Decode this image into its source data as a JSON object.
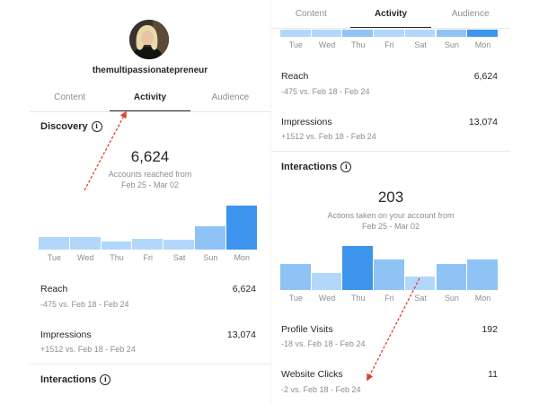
{
  "left": {
    "profile": {
      "username": "themultipassionatepreneur"
    },
    "tabs": [
      "Content",
      "Activity",
      "Audience"
    ],
    "active_tab": "Activity",
    "discovery": {
      "title": "Discovery",
      "count": "6,624",
      "caption_line1": "Accounts reached from",
      "caption_line2": "Feb 25 - Mar 02"
    },
    "chart_data": {
      "type": "bar",
      "categories": [
        "Tue",
        "Wed",
        "Thu",
        "Fri",
        "Sat",
        "Sun",
        "Mon"
      ],
      "values": [
        14,
        14,
        9,
        12,
        11,
        26,
        49
      ]
    },
    "metrics": [
      {
        "label": "Reach",
        "value": "6,624",
        "sub": "-475 vs. Feb 18 - Feb 24"
      },
      {
        "label": "Impressions",
        "value": "13,074",
        "sub": "+1512 vs. Feb 18 - Feb 24"
      }
    ],
    "interactions_title": "Interactions"
  },
  "right": {
    "tabs": [
      "Content",
      "Activity",
      "Audience"
    ],
    "active_tab": "Activity",
    "top_days": [
      "Tue",
      "Wed",
      "Thu",
      "Fri",
      "Sat",
      "Sun",
      "Mon"
    ],
    "metrics": [
      {
        "label": "Reach",
        "value": "6,624",
        "sub": "-475 vs. Feb 18 - Feb 24"
      },
      {
        "label": "Impressions",
        "value": "13,074",
        "sub": "+1512 vs. Feb 18 - Feb 24"
      }
    ],
    "interactions": {
      "title": "Interactions",
      "count": "203",
      "caption_line1": "Actions taken on your account from",
      "caption_line2": "Feb 25 - Mar 02"
    },
    "chart_data": {
      "type": "bar",
      "categories": [
        "Tue",
        "Wed",
        "Thu",
        "Fri",
        "Sat",
        "Sun",
        "Mon"
      ],
      "values": [
        28,
        19,
        48,
        33,
        15,
        28,
        33
      ]
    },
    "metrics2": [
      {
        "label": "Profile Visits",
        "value": "192",
        "sub": "-18 vs. Feb 18 - Feb 24"
      },
      {
        "label": "Website Clicks",
        "value": "11",
        "sub": "-2 vs. Feb 18 - Feb 24"
      }
    ]
  },
  "colors": {
    "bar_light": "#b3d7fb",
    "bar_mid": "#8fc3f5",
    "bar_highlight": "#3d94ec",
    "annotation_arrow": "#e0412f"
  }
}
